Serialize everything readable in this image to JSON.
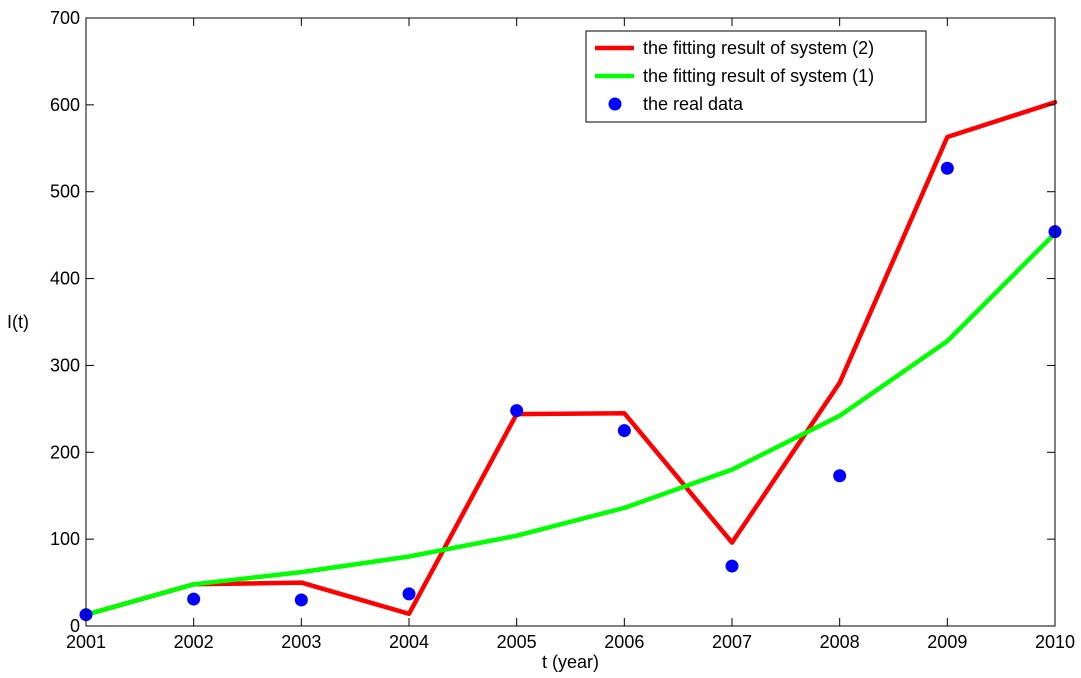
{
  "chart_data": {
    "type": "line",
    "title": "",
    "xlabel": "t (year)",
    "ylabel": "I(t)",
    "xlim": [
      2001,
      2010
    ],
    "ylim": [
      0,
      700
    ],
    "xticks": [
      "2001",
      "2002",
      "2003",
      "2004",
      "2005",
      "2006",
      "2007",
      "2008",
      "2009",
      "2010"
    ],
    "yticks": [
      "0",
      "100",
      "200",
      "300",
      "400",
      "500",
      "600",
      "700"
    ],
    "grid": false,
    "legend_position": "top-right",
    "x": [
      2001,
      2002,
      2003,
      2004,
      2005,
      2006,
      2007,
      2008,
      2009,
      2010
    ],
    "series": [
      {
        "name": "the fitting result of system (2)",
        "kind": "line",
        "color": "#ff0000",
        "values": [
          13,
          48,
          50,
          14,
          244,
          245,
          96,
          280,
          563,
          603
        ]
      },
      {
        "name": "the fitting result of system (1)",
        "kind": "line",
        "color": "#00ff00",
        "values": [
          13,
          48,
          62,
          80,
          104,
          136,
          180,
          242,
          328,
          452
        ]
      },
      {
        "name": "the real data",
        "kind": "scatter",
        "color": "#0000ff",
        "values": [
          13,
          31,
          30,
          37,
          248,
          225,
          69,
          173,
          527,
          454
        ]
      }
    ]
  }
}
